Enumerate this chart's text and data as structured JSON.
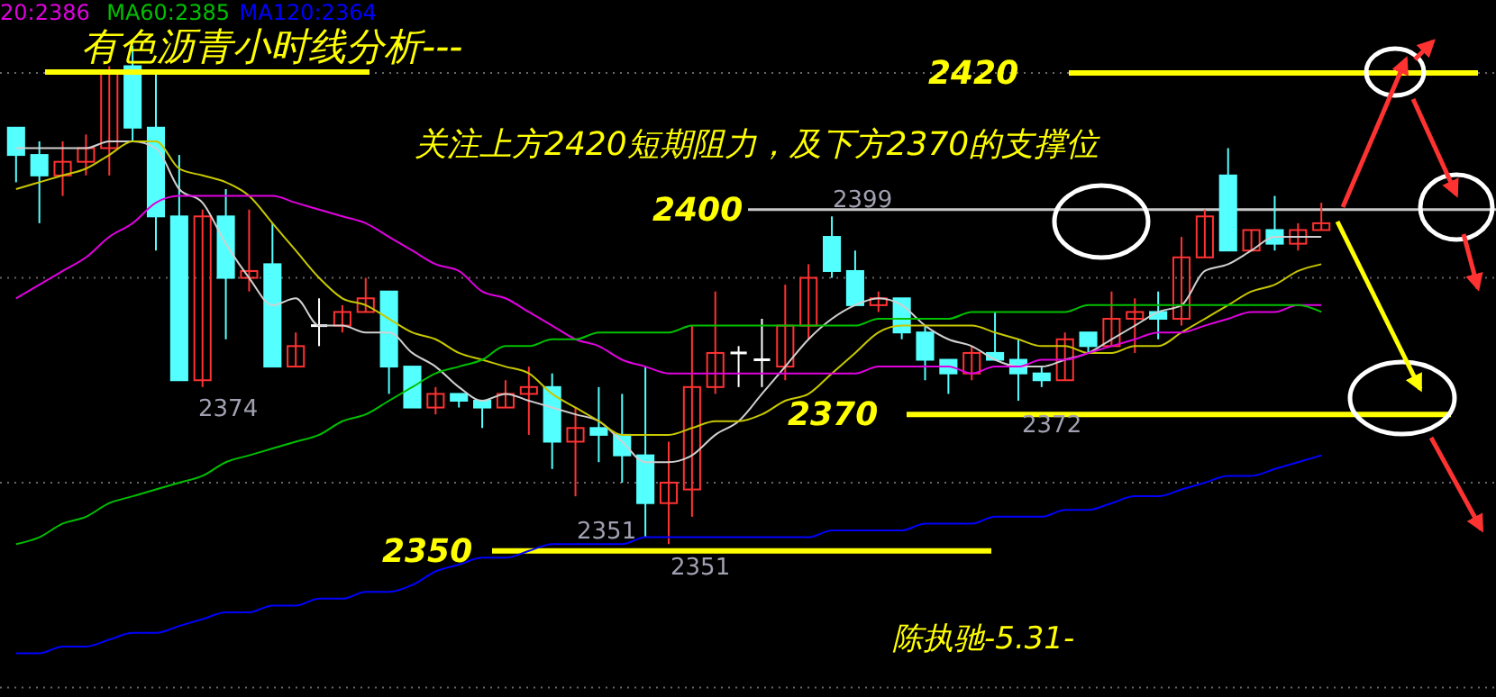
{
  "chart_data": {
    "type": "candlestick",
    "title": "有色沥青小时线分析---",
    "categories": [
      null,
      null,
      null,
      null,
      null,
      null,
      null,
      null,
      null,
      null,
      null,
      null,
      null,
      null,
      null,
      null,
      null,
      null,
      null,
      null,
      null,
      null,
      null,
      null,
      null,
      null,
      null,
      null,
      null,
      null,
      null,
      null,
      null,
      null,
      null,
      null,
      null,
      null,
      null,
      null,
      null,
      null,
      null,
      null,
      null,
      null,
      null,
      null,
      null,
      null,
      null,
      null,
      null,
      null,
      null,
      null,
      null
    ],
    "ohlc": [
      [
        2412,
        2412,
        2404,
        2408
      ],
      [
        2408,
        2410,
        2398,
        2405
      ],
      [
        2405,
        2410,
        2402,
        2407
      ],
      [
        2407,
        2411,
        2405,
        2409
      ],
      [
        2409,
        2421,
        2405,
        2420
      ],
      [
        2421,
        2424,
        2410,
        2412
      ],
      [
        2412,
        2420,
        2394,
        2399
      ],
      [
        2399,
        2408,
        2375,
        2375
      ],
      [
        2375,
        2400,
        2374,
        2399
      ],
      [
        2399,
        2403,
        2381,
        2390
      ],
      [
        2390,
        2400,
        2388,
        2391
      ],
      [
        2392,
        2398,
        2377,
        2377
      ],
      [
        2377,
        2382,
        2377,
        2380
      ],
      [
        2383,
        2387,
        2380,
        2383
      ],
      [
        2383,
        2386,
        2382,
        2385
      ],
      [
        2385,
        2390,
        2385,
        2387
      ],
      [
        2388,
        2388,
        2373,
        2377
      ],
      [
        2377,
        2377,
        2371,
        2371
      ],
      [
        2371,
        2374,
        2370,
        2373
      ],
      [
        2373,
        2373,
        2371,
        2372
      ],
      [
        2372,
        2372,
        2368,
        2371
      ],
      [
        2371,
        2375,
        2371,
        2373
      ],
      [
        2373,
        2377,
        2367,
        2374
      ],
      [
        2374,
        2376,
        2362,
        2366
      ],
      [
        2366,
        2371,
        2358,
        2368
      ],
      [
        2368,
        2374,
        2363,
        2367
      ],
      [
        2367,
        2373,
        2360,
        2364
      ],
      [
        2364,
        2377,
        2352,
        2357
      ],
      [
        2357,
        2366,
        2351,
        2360
      ],
      [
        2359,
        2383,
        2355,
        2374
      ],
      [
        2374,
        2388,
        2373,
        2379
      ],
      [
        2379,
        2380,
        2374,
        2379
      ],
      [
        2378,
        2384,
        2374,
        2378
      ],
      [
        2377,
        2389,
        2375,
        2383
      ],
      [
        2383,
        2392,
        2381,
        2390
      ],
      [
        2396,
        2399,
        2390,
        2391
      ],
      [
        2391,
        2394,
        2386,
        2386
      ],
      [
        2386,
        2388,
        2385,
        2387
      ],
      [
        2387,
        2387,
        2381,
        2382
      ],
      [
        2382,
        2383,
        2375,
        2378
      ],
      [
        2378,
        2378,
        2373,
        2376
      ],
      [
        2376,
        2380,
        2375,
        2379
      ],
      [
        2379,
        2385,
        2378,
        2378
      ],
      [
        2378,
        2381,
        2372,
        2376
      ],
      [
        2376,
        2377,
        2374,
        2375
      ],
      [
        2375,
        2382,
        2375,
        2381
      ],
      [
        2382,
        2382,
        2379,
        2380
      ],
      [
        2380,
        2388,
        2380,
        2384
      ],
      [
        2384,
        2387,
        2379,
        2385
      ],
      [
        2385,
        2388,
        2381,
        2384
      ],
      [
        2384,
        2396,
        2383,
        2393
      ],
      [
        2393,
        2400,
        2393,
        2399
      ],
      [
        2405,
        2409,
        2394,
        2394
      ],
      [
        2394,
        2397,
        2394,
        2397
      ],
      [
        2397,
        2402,
        2394,
        2395
      ],
      [
        2395,
        2398,
        2394,
        2397
      ],
      [
        2397,
        2401,
        2397,
        2398
      ]
    ],
    "colors": [
      "#54ffff",
      "#54ffff",
      "#ff3232",
      "#ff3232",
      "#ff3232",
      "#54ffff",
      "#54ffff",
      "#54ffff",
      "#ff3232",
      "#54ffff",
      "#ff3232",
      "#54ffff",
      "#ff3232",
      "#ffffff",
      "#ff3232",
      "#ff3232",
      "#54ffff",
      "#54ffff",
      "#ff3232",
      "#54ffff",
      "#54ffff",
      "#ff3232",
      "#ff3232",
      "#54ffff",
      "#ff3232",
      "#54ffff",
      "#54ffff",
      "#54ffff",
      "#ff3232",
      "#ff3232",
      "#ff3232",
      "#ffffff",
      "#ffffff",
      "#ff3232",
      "#ff3232",
      "#54ffff",
      "#54ffff",
      "#ff3232",
      "#54ffff",
      "#54ffff",
      "#54ffff",
      "#ff3232",
      "#54ffff",
      "#54ffff",
      "#54ffff",
      "#ff3232",
      "#54ffff",
      "#ff3232",
      "#ff3232",
      "#54ffff",
      "#ff3232",
      "#ff3232",
      "#54ffff",
      "#ff3232",
      "#54ffff",
      "#ff3232",
      "#ff3232"
    ],
    "series": [
      {
        "type": "line",
        "color": "#d0d0d0",
        "values": [
          2409,
          2409,
          2409,
          2409,
          2410,
          2410,
          2409,
          2403,
          2401,
          2395,
          2390,
          2386,
          2387,
          2383,
          2383,
          2382,
          2382,
          2379,
          2377,
          2374,
          2372,
          2373,
          2372,
          2371,
          2370,
          2369,
          2366,
          2363,
          2363,
          2364,
          2367,
          2369,
          2373,
          2377,
          2381,
          2384,
          2386,
          2387,
          2386,
          2383,
          2381,
          2380,
          2378,
          2377,
          2377,
          2378,
          2379,
          2381,
          2383,
          2385,
          2386,
          2391,
          2392,
          2394,
          2396,
          2396,
          2396
        ]
      },
      {
        "type": "line",
        "color": "#c8c800",
        "values": [
          2403,
          2404,
          2405,
          2406,
          2408,
          2410,
          2410,
          2406,
          2405,
          2404,
          2402,
          2398,
          2394,
          2390,
          2387,
          2386,
          2384,
          2382,
          2381,
          2379,
          2378,
          2377,
          2376,
          2373,
          2371,
          2369,
          2367,
          2367,
          2367,
          2368,
          2369,
          2369,
          2370,
          2372,
          2373,
          2376,
          2379,
          2382,
          2383,
          2383,
          2383,
          2383,
          2382,
          2381,
          2380,
          2380,
          2379,
          2379,
          2380,
          2380,
          2382,
          2384,
          2386,
          2388,
          2389,
          2391,
          2392
        ]
      },
      {
        "type": "line",
        "name": "20:2386",
        "color": "#e000e0",
        "values": [
          2387,
          2389,
          2391,
          2393,
          2396,
          2398,
          2401,
          2402,
          2402,
          2402,
          2402,
          2402,
          2401,
          2400,
          2399,
          2398,
          2396,
          2394,
          2392,
          2391,
          2388,
          2387,
          2385,
          2383,
          2381,
          2380,
          2378,
          2377,
          2376,
          2376,
          2376,
          2376,
          2376,
          2376,
          2376,
          2376,
          2376,
          2377,
          2377,
          2377,
          2377,
          2376,
          2377,
          2377,
          2378,
          2378,
          2379,
          2380,
          2381,
          2382,
          2382,
          2383,
          2384,
          2385,
          2385,
          2386,
          2386
        ]
      },
      {
        "type": "line",
        "name": "MA60:2385",
        "color": "#00c000",
        "values": [
          2351,
          2352,
          2354,
          2355,
          2357,
          2358,
          2359,
          2360,
          2361,
          2363,
          2364,
          2365,
          2366,
          2367,
          2369,
          2370,
          2372,
          2374,
          2376,
          2377,
          2378,
          2380,
          2380,
          2381,
          2381,
          2382,
          2382,
          2382,
          2382,
          2383,
          2383,
          2383,
          2383,
          2383,
          2383,
          2383,
          2383,
          2384,
          2384,
          2384,
          2384,
          2385,
          2385,
          2385,
          2385,
          2385,
          2386,
          2386,
          2386,
          2386,
          2386,
          2386,
          2386,
          2386,
          2386,
          2386,
          2385
        ]
      },
      {
        "type": "line",
        "name": "MA120:2364",
        "color": "#0000ff",
        "values": [
          2335,
          2335,
          2336,
          2336,
          2337,
          2338,
          2338,
          2339,
          2340,
          2341,
          2341,
          2342,
          2342,
          2343,
          2343,
          2344,
          2344,
          2345,
          2347,
          2348,
          2349,
          2349,
          2350,
          2351,
          2351,
          2351,
          2351,
          2352,
          2352,
          2352,
          2352,
          2352,
          2352,
          2352,
          2352,
          2353,
          2353,
          2353,
          2353,
          2354,
          2354,
          2354,
          2355,
          2355,
          2355,
          2356,
          2356,
          2357,
          2358,
          2358,
          2359,
          2360,
          2361,
          2361,
          2362,
          2363,
          2364
        ]
      }
    ],
    "ylim": [
      2328.6,
      2430.7
    ],
    "yticks": [
      {
        "value": 2420,
        "label": null
      },
      {
        "value": 2390,
        "label": null
      },
      {
        "value": 2360,
        "label": null
      },
      {
        "value": 2330,
        "label": null
      }
    ],
    "grid": "y",
    "legend": "top left",
    "ref_lines": [
      {
        "axis": "y",
        "value": 2420,
        "label": "2420",
        "color": "#ffff00"
      },
      {
        "axis": "y",
        "value": 2400,
        "label": "2400",
        "color": "#c8c8c8"
      },
      {
        "axis": "y",
        "value": 2370,
        "label": "2370",
        "color": "#ffff00"
      },
      {
        "axis": "y",
        "value": 2350,
        "label": "2350",
        "color": "#ffff00"
      }
    ],
    "annotations": [
      "关注上方2420短期阻力，及下方2370的支撑位",
      "陈执驰-5.31-",
      {
        "text": "2399",
        "y": 2399
      },
      "2374",
      "2372",
      {
        "text": "2351",
        "y": 2351
      },
      {
        "text": "2351",
        "y": 2351
      }
    ]
  }
}
